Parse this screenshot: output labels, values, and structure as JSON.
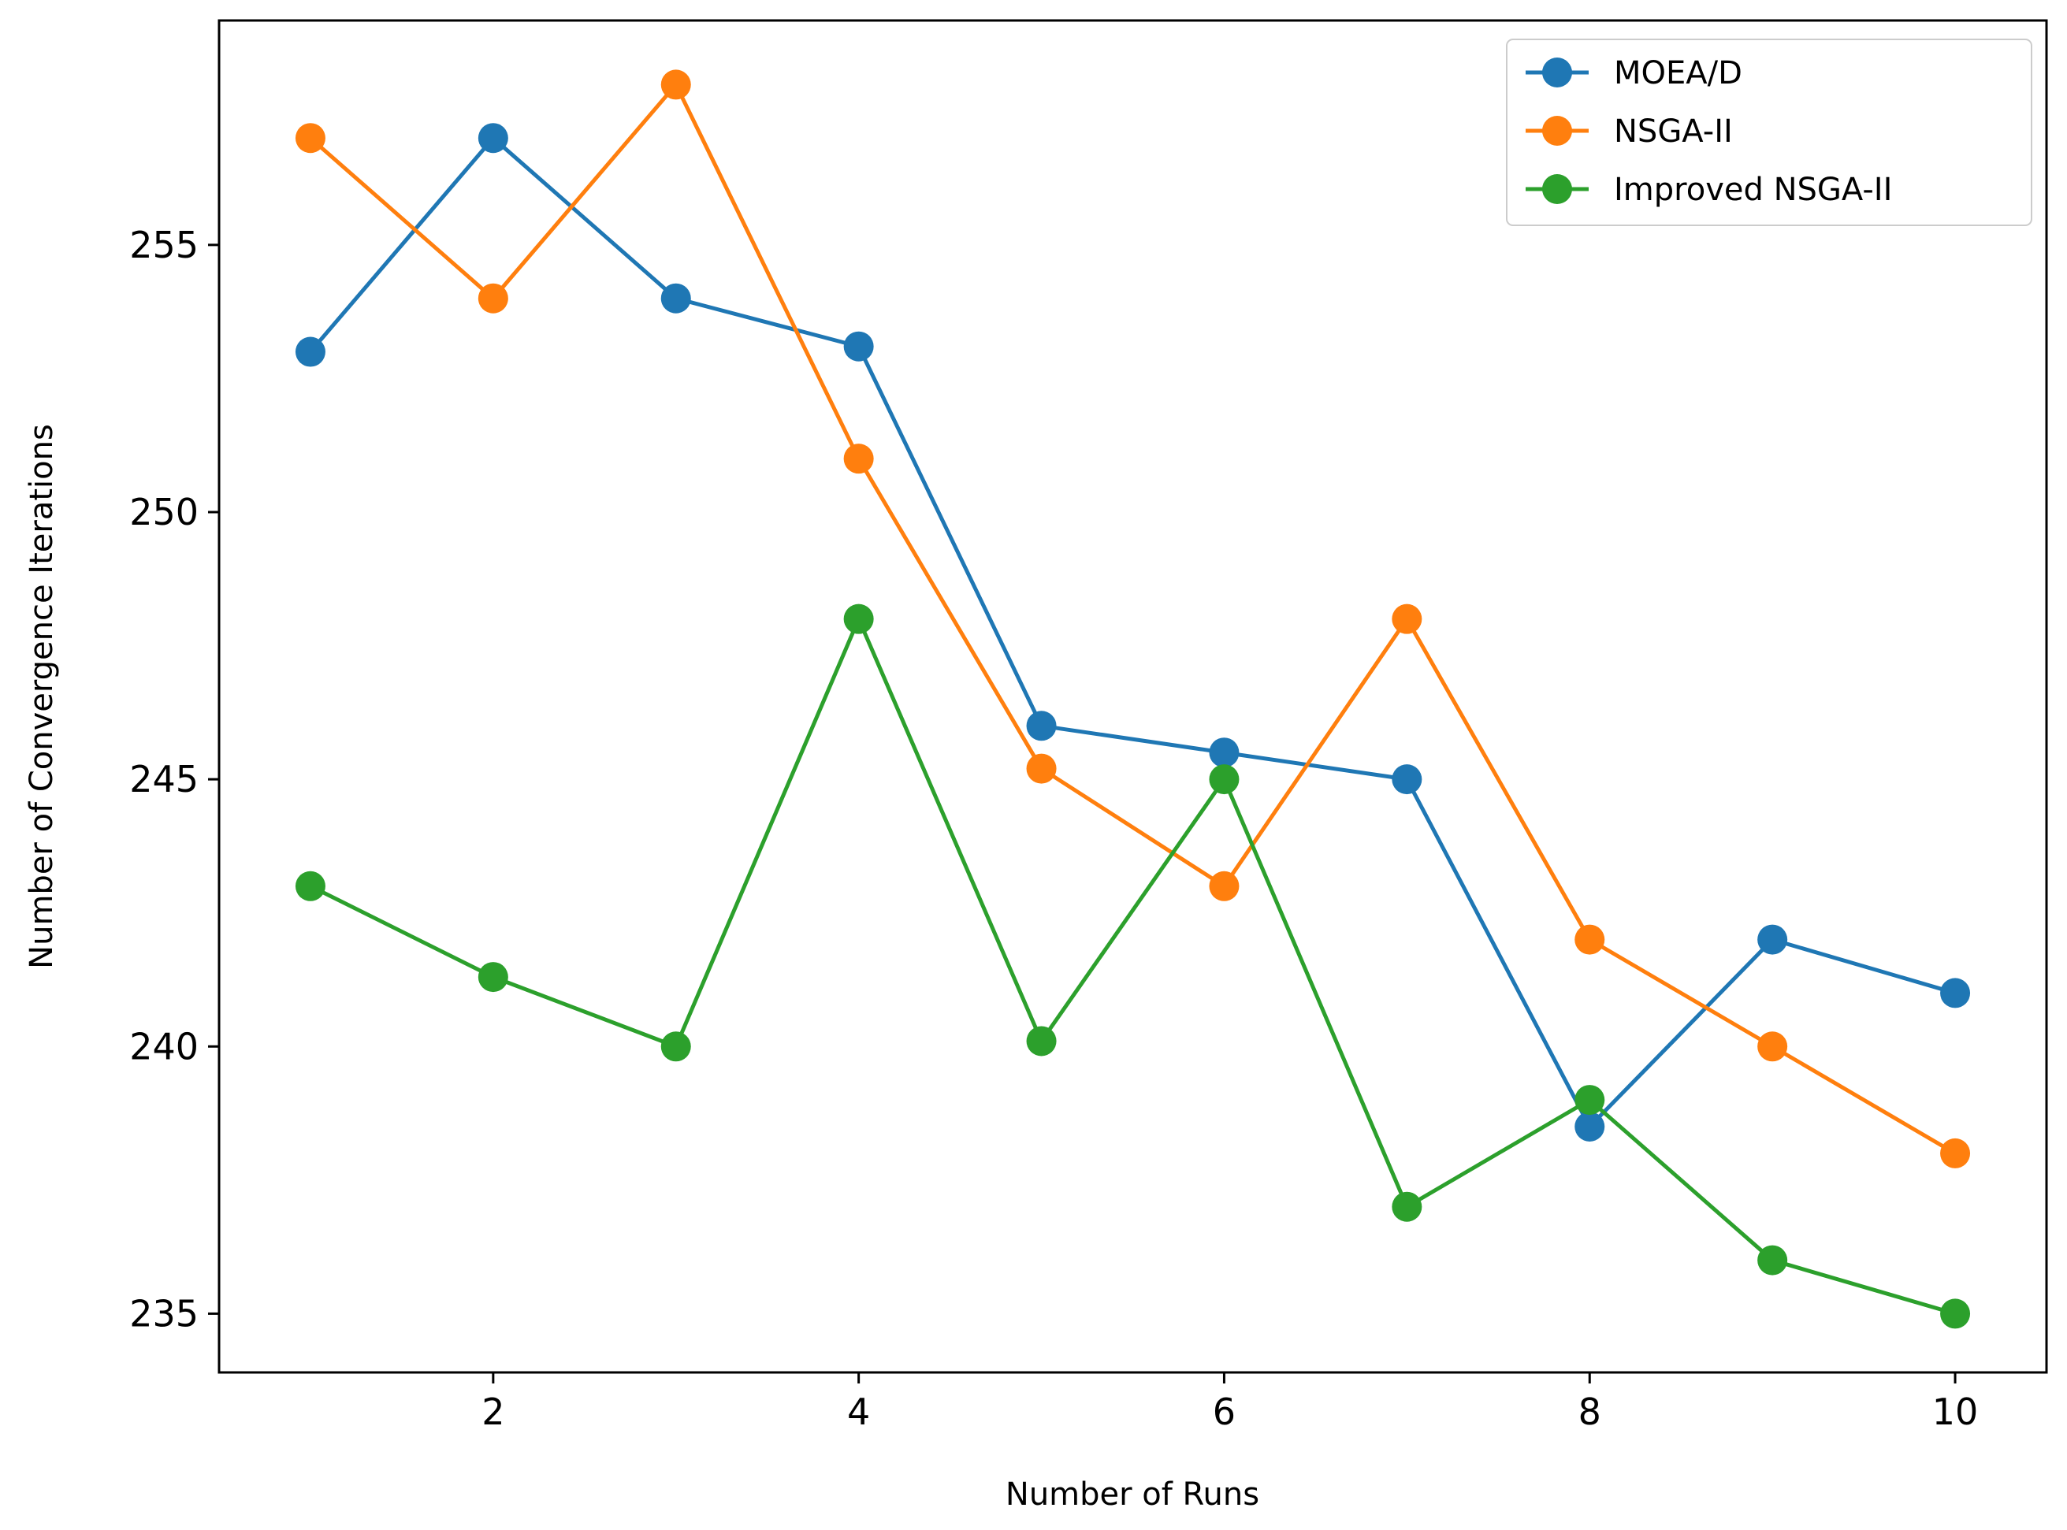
{
  "chart_data": {
    "type": "line",
    "title": "",
    "xlabel": "Number of Runs",
    "ylabel": "Number of Convergence Iterations",
    "xlim": [
      0.5,
      10.5
    ],
    "ylim": [
      233.9,
      259.2
    ],
    "xticks": [
      2,
      4,
      6,
      8,
      10
    ],
    "yticks": [
      235,
      240,
      245,
      250,
      255
    ],
    "x": [
      1,
      2,
      3,
      4,
      5,
      6,
      7,
      8,
      9,
      10
    ],
    "series": [
      {
        "name": "MOEA/D",
        "color": "#1f77b4",
        "values": [
          253,
          257,
          254,
          253.1,
          246,
          245.5,
          245,
          238.5,
          242,
          241
        ]
      },
      {
        "name": "NSGA-II",
        "color": "#ff7f0e",
        "values": [
          257,
          254,
          258,
          251,
          245.2,
          243,
          248,
          242,
          240,
          238
        ]
      },
      {
        "name": "Improved NSGA-II",
        "color": "#2ca02c",
        "values": [
          243,
          241.3,
          240,
          248,
          240.1,
          245,
          237,
          239,
          236,
          235
        ]
      }
    ],
    "legend_position": "top-right",
    "grid": false
  }
}
